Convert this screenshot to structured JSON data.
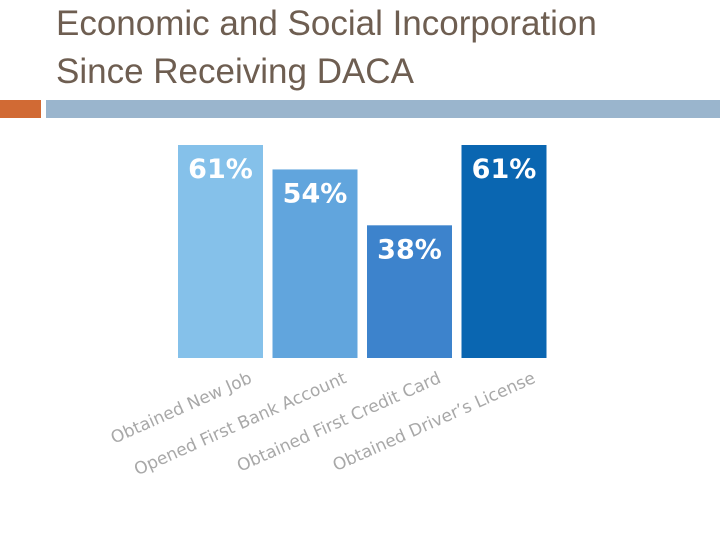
{
  "slide": {
    "title_line1": "Economic and Social Incorporation",
    "title_line2": "Since Receiving DACA"
  },
  "colors": {
    "title": "#6e5e51",
    "accent": "#d16a34",
    "rule": "#9ab5cd",
    "category_text": "#a8a8a8",
    "bar_label_text": "#ffffff"
  },
  "chart_data": {
    "type": "bar",
    "categories": [
      "Obtained New Job",
      "Opened First Bank Account",
      "Obtained First Credit Card",
      "Obtained Driver’s License"
    ],
    "values": [
      61,
      54,
      38,
      61
    ],
    "labels": [
      "61%",
      "54%",
      "38%",
      "61%"
    ],
    "colors": [
      "#85c1ea",
      "#61a5dd",
      "#3d83cc",
      "#0a66b1"
    ],
    "unit": "%",
    "ylim": [
      0,
      61
    ],
    "grid": false,
    "legend": "none"
  }
}
